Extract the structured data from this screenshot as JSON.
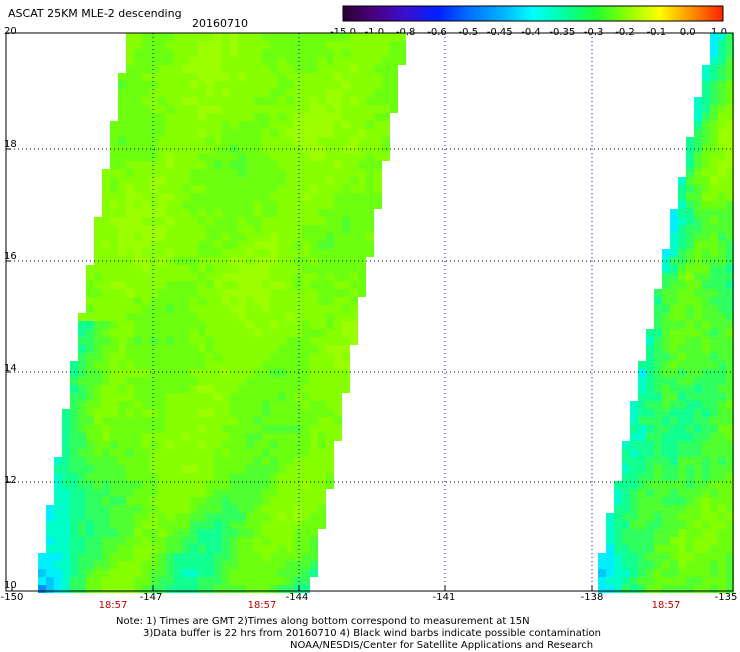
{
  "title": "ASCAT 25KM MLE-2 descending",
  "date": "20160710",
  "colorbar": {
    "labels": [
      "-15.0",
      "-1.0",
      "-0.8",
      "-0.6",
      "-0.5",
      "-0.45",
      "-0.4",
      "-0.35",
      "-0.3",
      "-0.2",
      "-0.1",
      "0.0",
      "1.0"
    ],
    "colors": [
      "#2a0030",
      "#4b0082",
      "#3a10d0",
      "#0020ff",
      "#0070ff",
      "#00b0ff",
      "#00ffff",
      "#00ffa0",
      "#20ff30",
      "#90ff00",
      "#ffff00",
      "#ff9000",
      "#ff2000"
    ]
  },
  "map": {
    "y_ticks": [
      "20",
      "18",
      "16",
      "14",
      "12",
      "10"
    ],
    "x_ticks": [
      "-150",
      "-147",
      "-144",
      "-141",
      "-138",
      "-135"
    ],
    "time_labels": [
      "18:57",
      "18:57",
      "18:57"
    ]
  },
  "notes": [
    "Note: 1) Times are GMT 2)Times along bottom correspond to measurement at 15N",
    "3)Data buffer is 22 hrs from 20160710 4) Black wind barbs indicate possible contamination",
    "NOAA/NESDIS/Center for Satellite Applications and Research"
  ]
}
